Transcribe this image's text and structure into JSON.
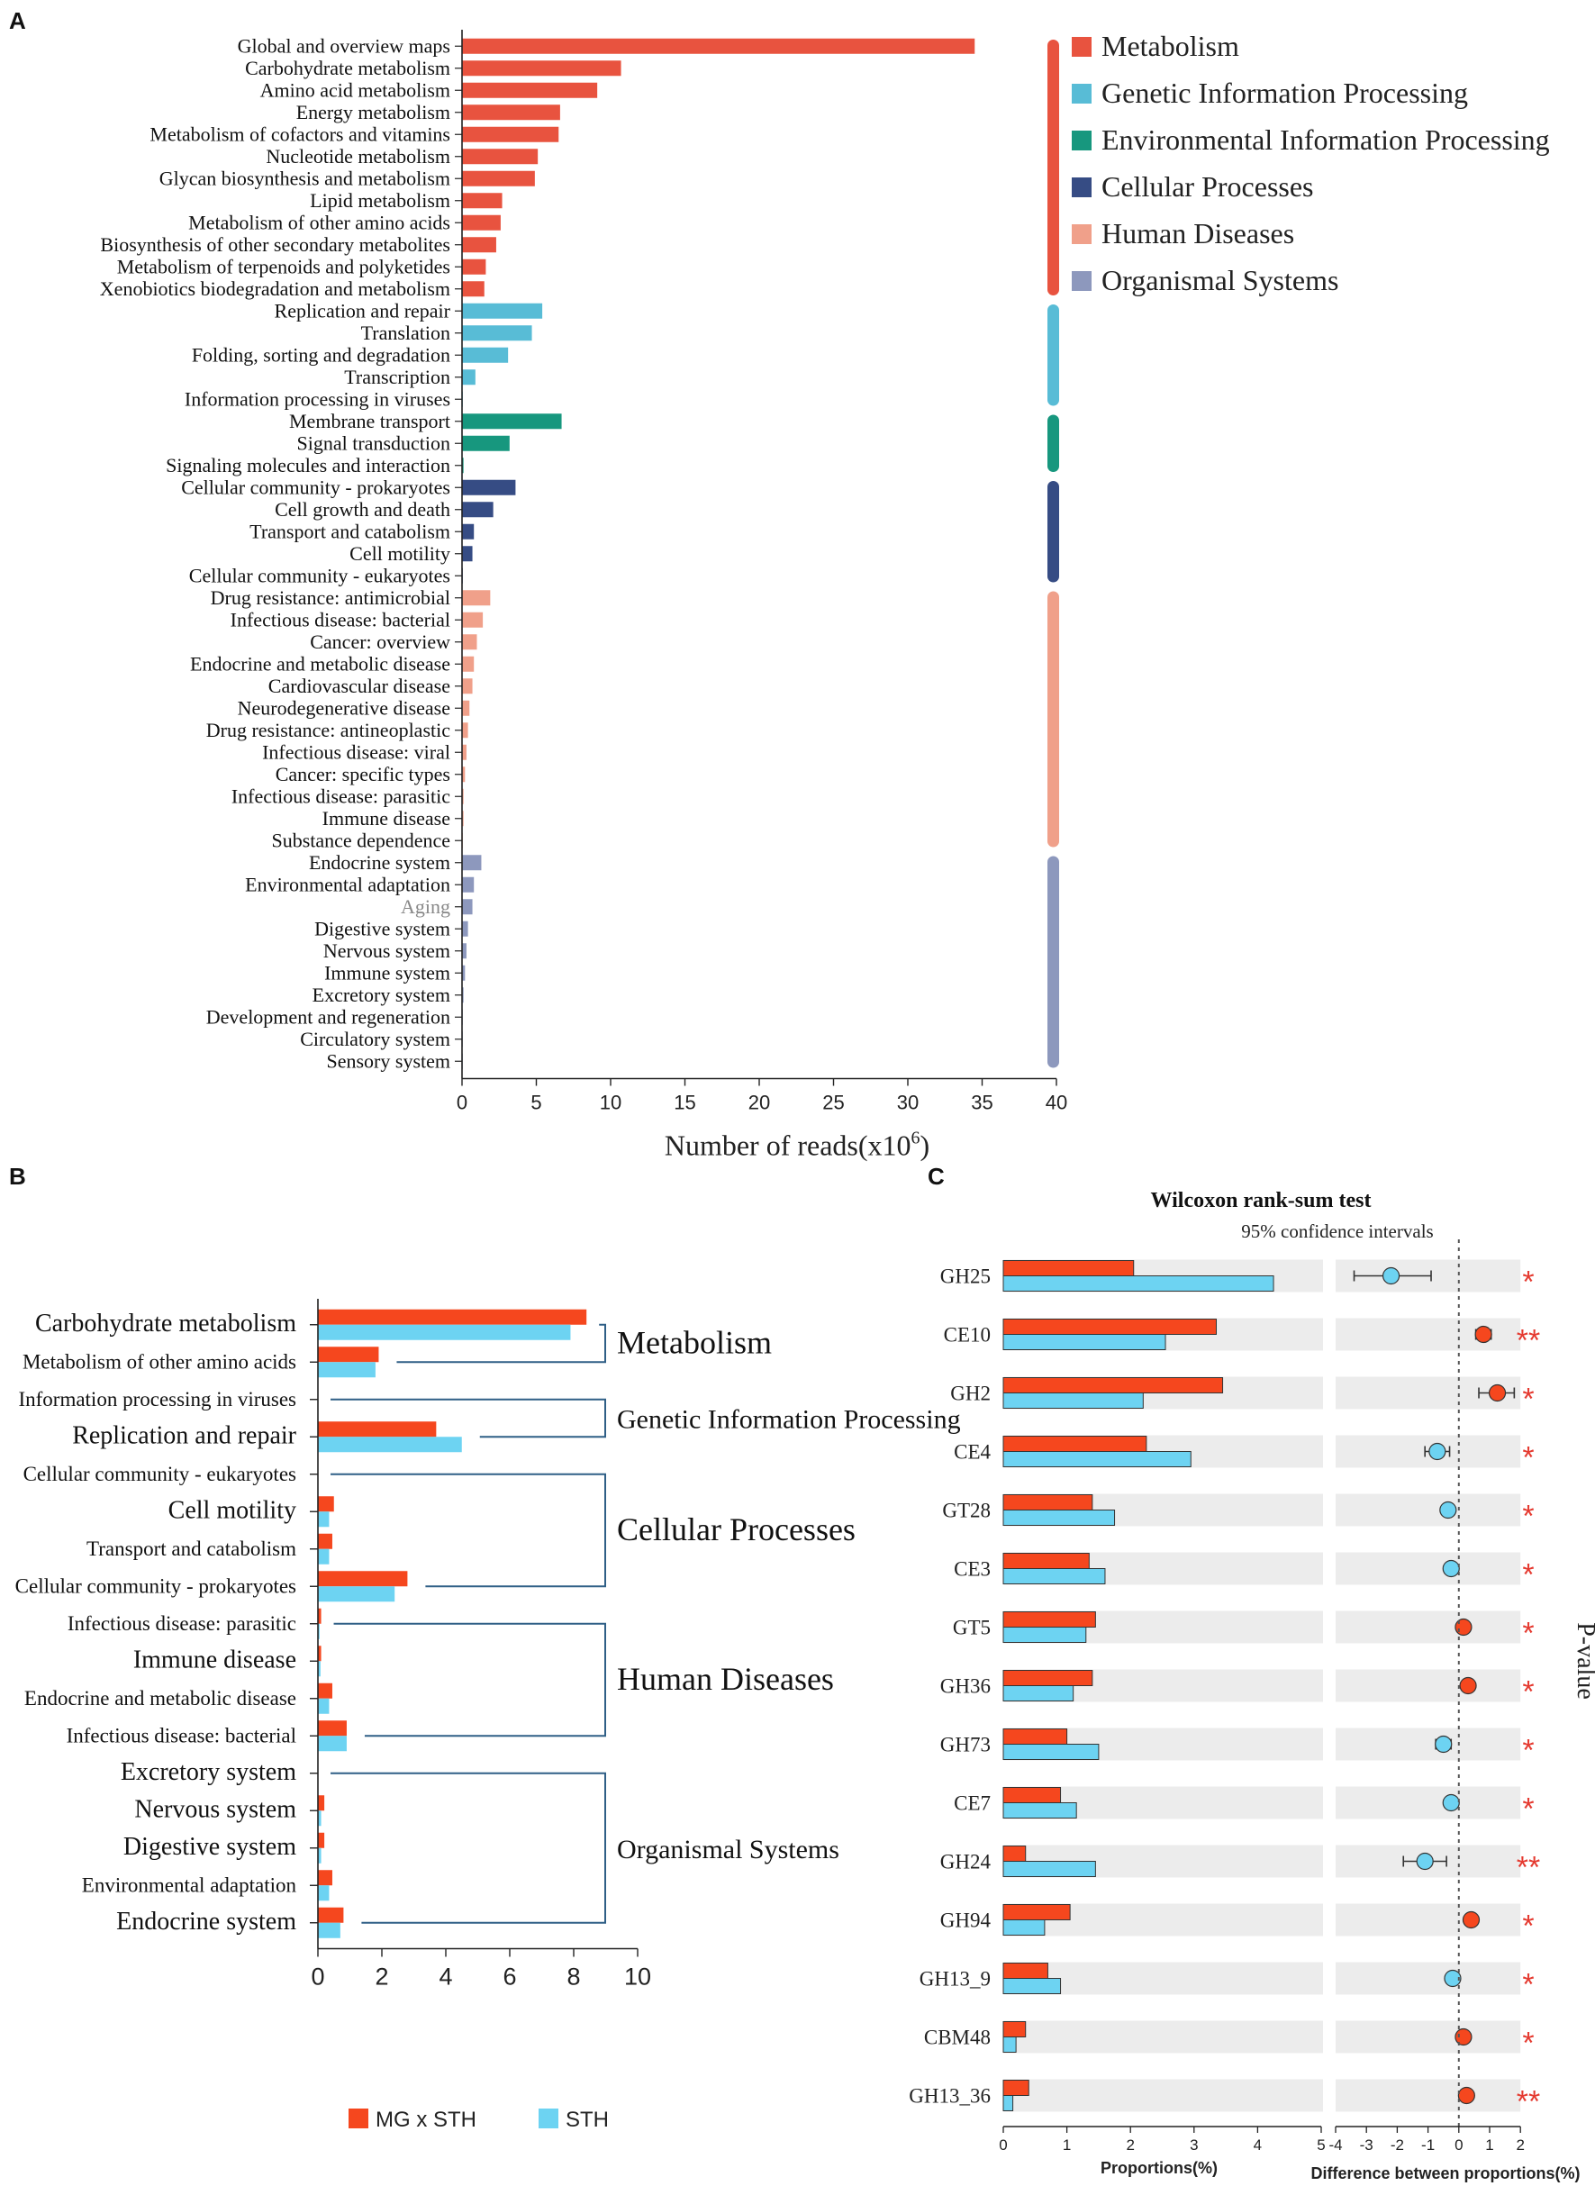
{
  "colors": {
    "metabolism": "#e8533f",
    "genetic": "#58bcd6",
    "environmental": "#17977e",
    "cellular": "#364c84",
    "human": "#f0a08a",
    "organismal": "#8d98bd",
    "mg_sth": "#f5471e",
    "sth": "#6dd3f2",
    "bracket": "#2f5f86",
    "star": "#e53a30",
    "rowbg": "#ececec"
  },
  "chart_data": [
    {
      "panel": "A",
      "type": "bar",
      "orientation": "horizontal",
      "xlabel": "Number of reads(x10",
      "xlabel_sup": "6",
      "xlabel_close": ")",
      "xlim": [
        0,
        40
      ],
      "xticks": [
        "0",
        "5",
        "10",
        "15",
        "20",
        "25",
        "30",
        "35",
        "40"
      ],
      "legend": [
        {
          "label": "Metabolism",
          "group": "metabolism"
        },
        {
          "label": "Genetic Information Processing",
          "group": "genetic"
        },
        {
          "label": "Environmental Information Processing",
          "group": "environmental"
        },
        {
          "label": "Cellular Processes",
          "group": "cellular"
        },
        {
          "label": "Human Diseases",
          "group": "human"
        },
        {
          "label": "Organismal Systems",
          "group": "organismal"
        }
      ],
      "categories": [
        {
          "label": "Global and overview maps",
          "value": 34.5,
          "group": "metabolism"
        },
        {
          "label": "Carbohydrate metabolism",
          "value": 10.7,
          "group": "metabolism"
        },
        {
          "label": "Amino acid metabolism",
          "value": 9.1,
          "group": "metabolism"
        },
        {
          "label": "Energy metabolism",
          "value": 6.6,
          "group": "metabolism"
        },
        {
          "label": "Metabolism of cofactors and vitamins",
          "value": 6.5,
          "group": "metabolism"
        },
        {
          "label": "Nucleotide metabolism",
          "value": 5.1,
          "group": "metabolism"
        },
        {
          "label": "Glycan biosynthesis and metabolism",
          "value": 4.9,
          "group": "metabolism"
        },
        {
          "label": "Lipid metabolism",
          "value": 2.7,
          "group": "metabolism"
        },
        {
          "label": "Metabolism of other amino acids",
          "value": 2.6,
          "group": "metabolism"
        },
        {
          "label": "Biosynthesis of other secondary metabolites",
          "value": 2.3,
          "group": "metabolism"
        },
        {
          "label": "Metabolism of terpenoids and polyketides",
          "value": 1.6,
          "group": "metabolism"
        },
        {
          "label": "Xenobiotics biodegradation and metabolism",
          "value": 1.5,
          "group": "metabolism"
        },
        {
          "label": "Replication and repair",
          "value": 5.4,
          "group": "genetic"
        },
        {
          "label": "Translation",
          "value": 4.7,
          "group": "genetic"
        },
        {
          "label": "Folding, sorting and degradation",
          "value": 3.1,
          "group": "genetic"
        },
        {
          "label": "Transcription",
          "value": 0.9,
          "group": "genetic"
        },
        {
          "label": "Information processing in viruses",
          "value": 0.05,
          "group": "genetic"
        },
        {
          "label": "Membrane transport",
          "value": 6.7,
          "group": "environmental"
        },
        {
          "label": "Signal transduction",
          "value": 3.2,
          "group": "environmental"
        },
        {
          "label": "Signaling molecules and interaction",
          "value": 0.1,
          "group": "environmental"
        },
        {
          "label": "Cellular community - prokaryotes",
          "value": 3.6,
          "group": "cellular"
        },
        {
          "label": "Cell growth and death",
          "value": 2.1,
          "group": "cellular"
        },
        {
          "label": "Transport and catabolism",
          "value": 0.8,
          "group": "cellular"
        },
        {
          "label": "Cell motility",
          "value": 0.7,
          "group": "cellular"
        },
        {
          "label": "Cellular community - eukaryotes",
          "value": 0.05,
          "group": "cellular"
        },
        {
          "label": "Drug resistance: antimicrobial",
          "value": 1.9,
          "group": "human"
        },
        {
          "label": "Infectious disease: bacterial",
          "value": 1.4,
          "group": "human"
        },
        {
          "label": "Cancer: overview",
          "value": 1.0,
          "group": "human"
        },
        {
          "label": "Endocrine and metabolic disease",
          "value": 0.8,
          "group": "human"
        },
        {
          "label": "Cardiovascular disease",
          "value": 0.7,
          "group": "human"
        },
        {
          "label": "Neurodegenerative disease",
          "value": 0.5,
          "group": "human"
        },
        {
          "label": "Drug resistance: antineoplastic",
          "value": 0.4,
          "group": "human"
        },
        {
          "label": "Infectious disease: viral",
          "value": 0.3,
          "group": "human"
        },
        {
          "label": "Cancer: specific types",
          "value": 0.2,
          "group": "human"
        },
        {
          "label": "Infectious disease: parasitic",
          "value": 0.1,
          "group": "human"
        },
        {
          "label": "Immune disease",
          "value": 0.1,
          "group": "human"
        },
        {
          "label": "Substance dependence",
          "value": 0.05,
          "group": "human"
        },
        {
          "label": "Endocrine system",
          "value": 1.3,
          "group": "organismal"
        },
        {
          "label": "Environmental adaptation",
          "value": 0.8,
          "group": "organismal"
        },
        {
          "label": "Aging",
          "value": 0.7,
          "group": "organismal"
        },
        {
          "label": "Digestive system",
          "value": 0.4,
          "group": "organismal"
        },
        {
          "label": "Nervous system",
          "value": 0.3,
          "group": "organismal"
        },
        {
          "label": "Immune system",
          "value": 0.2,
          "group": "organismal"
        },
        {
          "label": "Excretory system",
          "value": 0.1,
          "group": "organismal"
        },
        {
          "label": "Development and regeneration",
          "value": 0.05,
          "group": "organismal"
        },
        {
          "label": "Circulatory system",
          "value": 0.05,
          "group": "organismal"
        },
        {
          "label": "Sensory system",
          "value": 0.05,
          "group": "organismal"
        }
      ]
    },
    {
      "panel": "B",
      "type": "bar",
      "orientation": "horizontal",
      "xlim": [
        0,
        10
      ],
      "xticks": [
        "0",
        "2",
        "4",
        "6",
        "8",
        "10"
      ],
      "series_names": [
        "MG x STH",
        "STH"
      ],
      "legend": [
        {
          "label": "MG x STH",
          "series": 0
        },
        {
          "label": "STH",
          "series": 1
        }
      ],
      "categories": [
        {
          "label": "Carbohydrate metabolism",
          "mg": 8.4,
          "sth": 7.9,
          "size": "big"
        },
        {
          "label": "Metabolism of other amino acids",
          "mg": 1.9,
          "sth": 1.8,
          "size": "small"
        },
        {
          "label": "Information processing in viruses",
          "mg": 0.0,
          "sth": 0.0,
          "size": "small"
        },
        {
          "label": "Replication and repair",
          "mg": 3.7,
          "sth": 4.5,
          "size": "big"
        },
        {
          "label": "Cellular community - eukaryotes",
          "mg": 0.0,
          "sth": 0.0,
          "size": "small"
        },
        {
          "label": "Cell motility",
          "mg": 0.5,
          "sth": 0.35,
          "size": "big"
        },
        {
          "label": "Transport and catabolism",
          "mg": 0.45,
          "sth": 0.35,
          "size": "small"
        },
        {
          "label": "Cellular community - prokaryotes",
          "mg": 2.8,
          "sth": 2.4,
          "size": "small"
        },
        {
          "label": "Infectious disease: parasitic",
          "mg": 0.1,
          "sth": 0.05,
          "size": "small"
        },
        {
          "label": "Immune disease",
          "mg": 0.1,
          "sth": 0.08,
          "size": "big"
        },
        {
          "label": "Endocrine and metabolic disease",
          "mg": 0.45,
          "sth": 0.35,
          "size": "small"
        },
        {
          "label": "Infectious disease: bacterial",
          "mg": 0.9,
          "sth": 0.9,
          "size": "small"
        },
        {
          "label": "Excretory system",
          "mg": 0.0,
          "sth": 0.0,
          "size": "big"
        },
        {
          "label": "Nervous system",
          "mg": 0.2,
          "sth": 0.1,
          "size": "big"
        },
        {
          "label": "Digestive system",
          "mg": 0.2,
          "sth": 0.1,
          "size": "big"
        },
        {
          "label": "Environmental adaptation",
          "mg": 0.45,
          "sth": 0.35,
          "size": "small"
        },
        {
          "label": "Endocrine system",
          "mg": 0.8,
          "sth": 0.7,
          "size": "big"
        }
      ],
      "groups": [
        {
          "label": "Metabolism",
          "size": "big"
        },
        {
          "label": "Genetic Information Processing",
          "size": "mid"
        },
        {
          "label": "Cellular Processes",
          "size": "big"
        },
        {
          "label": "Human Diseases",
          "size": "big"
        },
        {
          "label": "Organismal Systems",
          "size": "mid"
        }
      ]
    },
    {
      "panel": "C",
      "type": "bar",
      "subtype": "extended-error-bar",
      "title": "Wilcoxon rank-sum test",
      "subtitle": "95% confidence intervals",
      "xlabel_left": "Proportions(%)",
      "xlabel_right": "Difference between proportions(%)",
      "ylabel_right": "P-value",
      "left_xlim": [
        0,
        5
      ],
      "left_xticks": [
        "0",
        "1",
        "2",
        "3",
        "4",
        "5"
      ],
      "right_xlim": [
        -4,
        2
      ],
      "right_xticks": [
        "-4",
        "-3",
        "-2",
        "-1",
        "0",
        "1",
        "2"
      ],
      "rows": [
        {
          "label": "GH25",
          "mg": 2.05,
          "sth": 4.25,
          "diff": -2.2,
          "ci": [
            -3.4,
            -0.9
          ],
          "higher": "sth",
          "sig": "*"
        },
        {
          "label": "CE10",
          "mg": 3.35,
          "sth": 2.55,
          "diff": 0.8,
          "ci": [
            0.55,
            1.05
          ],
          "higher": "mg",
          "sig": "**"
        },
        {
          "label": "GH2",
          "mg": 3.45,
          "sth": 2.2,
          "diff": 1.25,
          "ci": [
            0.65,
            1.8
          ],
          "higher": "mg",
          "sig": "*"
        },
        {
          "label": "CE4",
          "mg": 2.25,
          "sth": 2.95,
          "diff": -0.7,
          "ci": [
            -1.1,
            -0.3
          ],
          "higher": "sth",
          "sig": "*"
        },
        {
          "label": "GT28",
          "mg": 1.4,
          "sth": 1.75,
          "diff": -0.35,
          "ci": [
            -0.5,
            -0.2
          ],
          "higher": "sth",
          "sig": "*"
        },
        {
          "label": "CE3",
          "mg": 1.35,
          "sth": 1.6,
          "diff": -0.25,
          "ci": [
            -0.4,
            -0.1
          ],
          "higher": "sth",
          "sig": "*"
        },
        {
          "label": "GT5",
          "mg": 1.45,
          "sth": 1.3,
          "diff": 0.15,
          "ci": [
            0.05,
            0.25
          ],
          "higher": "mg",
          "sig": "*"
        },
        {
          "label": "GH36",
          "mg": 1.4,
          "sth": 1.1,
          "diff": 0.3,
          "ci": [
            0.15,
            0.45
          ],
          "higher": "mg",
          "sig": "*"
        },
        {
          "label": "GH73",
          "mg": 1.0,
          "sth": 1.5,
          "diff": -0.5,
          "ci": [
            -0.75,
            -0.25
          ],
          "higher": "sth",
          "sig": "*"
        },
        {
          "label": "CE7",
          "mg": 0.9,
          "sth": 1.15,
          "diff": -0.25,
          "ci": [
            -0.4,
            -0.1
          ],
          "higher": "sth",
          "sig": "*"
        },
        {
          "label": "GH24",
          "mg": 0.35,
          "sth": 1.45,
          "diff": -1.1,
          "ci": [
            -1.8,
            -0.4
          ],
          "higher": "sth",
          "sig": "**"
        },
        {
          "label": "GH94",
          "mg": 1.05,
          "sth": 0.65,
          "diff": 0.4,
          "ci": [
            0.25,
            0.55
          ],
          "higher": "mg",
          "sig": "*"
        },
        {
          "label": "GH13_9",
          "mg": 0.7,
          "sth": 0.9,
          "diff": -0.2,
          "ci": [
            -0.35,
            -0.05
          ],
          "higher": "sth",
          "sig": "*"
        },
        {
          "label": "CBM48",
          "mg": 0.35,
          "sth": 0.2,
          "diff": 0.15,
          "ci": [
            0.05,
            0.25
          ],
          "higher": "mg",
          "sig": "*"
        },
        {
          "label": "GH13_36",
          "mg": 0.4,
          "sth": 0.15,
          "diff": 0.25,
          "ci": [
            0.1,
            0.4
          ],
          "higher": "mg",
          "sig": "**"
        }
      ]
    }
  ],
  "panel_letters": [
    "A",
    "B",
    "C"
  ]
}
